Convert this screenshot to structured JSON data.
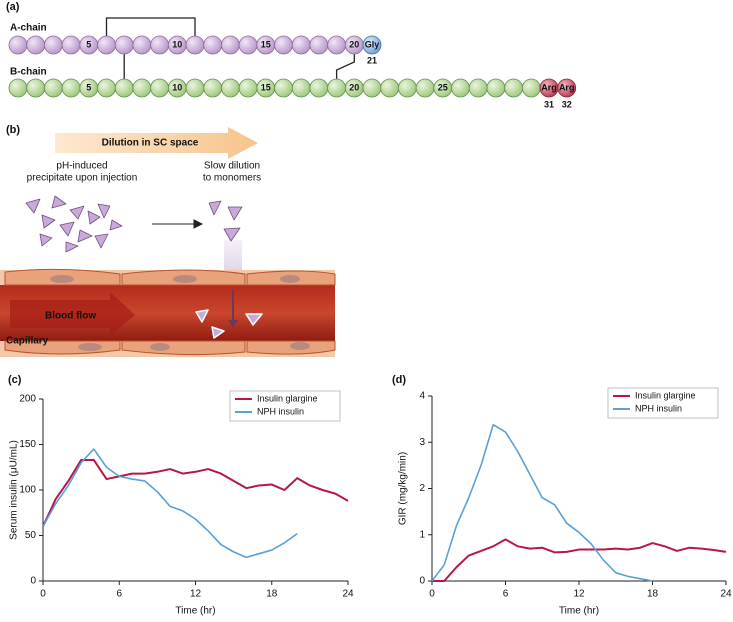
{
  "panel_a": {
    "label": "(a)",
    "a_chain": {
      "name": "A-chain",
      "labels": [
        "5",
        "10",
        "15",
        "20",
        "Gly",
        "21"
      ]
    },
    "b_chain": {
      "name": "B-chain",
      "labels": [
        "5",
        "10",
        "15",
        "20",
        "25",
        "Arg",
        "Arg",
        "31",
        "32"
      ]
    }
  },
  "panel_b": {
    "label": "(b)",
    "arrow_label": "Dilution in SC space",
    "left_caption": [
      "pH-induced",
      "precipitate upon injection"
    ],
    "right_caption": [
      "Slow dilution",
      "to monomers"
    ],
    "flow_label": "Blood flow",
    "vessel_label": "Capillary"
  },
  "chart_data": [
    {
      "type": "line",
      "panel_label": "(c)",
      "x_label": "Time (hr)",
      "y_label": "Serum insulin (μU/mL)",
      "x": [
        0,
        1,
        2,
        3,
        4,
        5,
        6,
        7,
        8,
        9,
        10,
        11,
        12,
        13,
        14,
        15,
        16,
        17,
        18,
        19,
        20,
        21,
        22,
        23,
        24
      ],
      "xlim": [
        0,
        24
      ],
      "xticks": [
        0,
        6,
        12,
        18,
        24
      ],
      "ylim": [
        0,
        200
      ],
      "yticks": [
        0,
        50,
        100,
        150,
        200
      ],
      "legend": "upper right",
      "series": [
        {
          "name": "Insulin glargine",
          "color": "#b5174b",
          "values": [
            60,
            90,
            110,
            133,
            133,
            112,
            115,
            118,
            118,
            120,
            123,
            118,
            120,
            123,
            118,
            110,
            102,
            105,
            106,
            100,
            113,
            105,
            100,
            96,
            88
          ]
        },
        {
          "name": "NPH insulin",
          "color": "#5aa0d6",
          "values": [
            60,
            85,
            105,
            130,
            145,
            125,
            115,
            112,
            110,
            98,
            82,
            77,
            68,
            55,
            40,
            32,
            26,
            30,
            34,
            42,
            52,
            null,
            null,
            null,
            null
          ]
        }
      ]
    },
    {
      "type": "line",
      "panel_label": "(d)",
      "x_label": "Time (hr)",
      "y_label": "GIR (mg/kg/min)",
      "x": [
        0,
        1,
        2,
        3,
        4,
        5,
        6,
        7,
        8,
        9,
        10,
        11,
        12,
        13,
        14,
        15,
        16,
        17,
        18,
        19,
        20,
        21,
        22,
        23,
        24
      ],
      "xlim": [
        0,
        24
      ],
      "xticks": [
        0,
        6,
        12,
        18,
        24
      ],
      "ylim": [
        0,
        4
      ],
      "yticks": [
        0,
        1,
        2,
        3,
        4
      ],
      "legend": "upper right",
      "series": [
        {
          "name": "Insulin glargine",
          "color": "#b5174b",
          "values": [
            0,
            0,
            0.3,
            0.55,
            0.65,
            0.75,
            0.9,
            0.75,
            0.7,
            0.72,
            0.62,
            0.63,
            0.68,
            0.68,
            0.68,
            0.7,
            0.68,
            0.72,
            0.82,
            0.75,
            0.65,
            0.72,
            0.7,
            0.67,
            0.63
          ]
        },
        {
          "name": "NPH insulin",
          "color": "#5aa0d6",
          "values": [
            0,
            0.35,
            1.2,
            1.8,
            2.5,
            3.38,
            3.22,
            2.8,
            2.3,
            1.8,
            1.65,
            1.25,
            1.05,
            0.8,
            0.45,
            0.18,
            0.1,
            0.05,
            0,
            null,
            null,
            null,
            null,
            null,
            null
          ]
        }
      ]
    }
  ]
}
